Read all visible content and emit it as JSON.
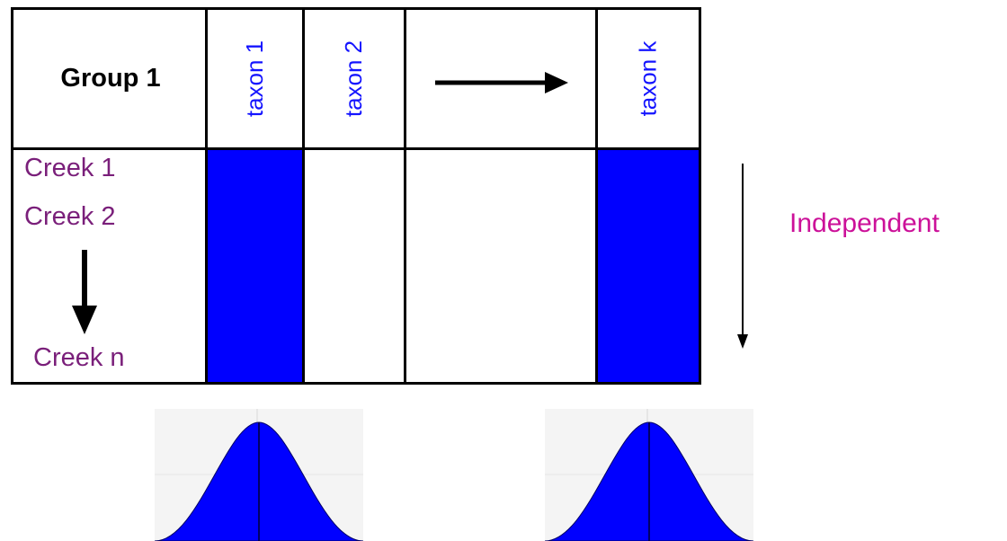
{
  "table": {
    "group_title": "Group 1",
    "taxa": [
      "taxon 1",
      "taxon 2",
      "taxon k"
    ],
    "creeks": [
      "Creek 1",
      "Creek 2",
      "Creek n"
    ],
    "highlighted_columns": [
      "taxon 1",
      "taxon k"
    ]
  },
  "annotation": {
    "independent_label": "Independent"
  },
  "colors": {
    "fill_blue": "#0000ff",
    "taxon_text": "#1414ff",
    "creek_text": "#7a1f7a",
    "independent_text": "#cc1199",
    "line": "#000000"
  }
}
